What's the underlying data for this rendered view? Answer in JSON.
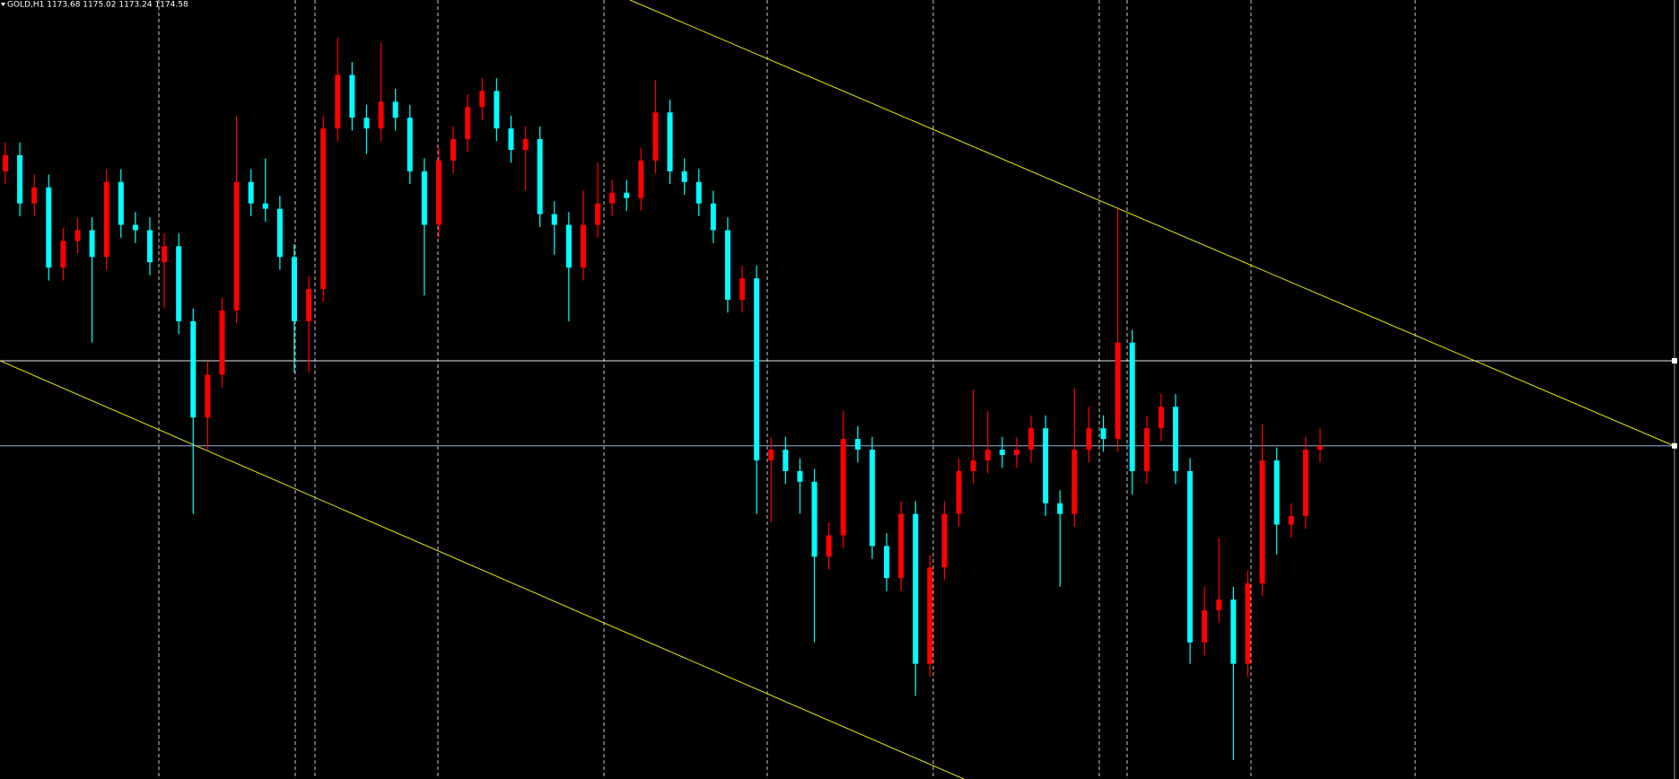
{
  "chart_data": {
    "type": "candlestick",
    "title": "GOLD,H1  1173.68 1175.02 1173.24 1174.58",
    "ylim": [
      1159.02,
      1195.4
    ],
    "up_color": "#ff0000",
    "down_color": "#00ffff",
    "hlines": [
      {
        "value": 1178.55,
        "color": "#e8e8e8"
      },
      {
        "value": 1174.58,
        "color": "#8fb8d8"
      }
    ],
    "open": [
      1187.4,
      1188.15,
      1185.9,
      1186.65,
      1182.9,
      1184.15,
      1184.65,
      1183.4,
      1186.9,
      1184.9,
      1184.65,
      1183.15,
      1183.9,
      1180.4,
      1175.9,
      1177.9,
      1180.9,
      1186.9,
      1185.9,
      1185.65,
      1183.4,
      1180.4,
      1181.9,
      1189.4,
      1191.9,
      1189.9,
      1189.4,
      1190.65,
      1189.9,
      1187.4,
      1184.9,
      1187.9,
      1188.9,
      1190.4,
      1191.15,
      1189.4,
      1188.4,
      1188.9,
      1185.4,
      1184.9,
      1182.9,
      1184.9,
      1185.9,
      1186.4,
      1186.15,
      1187.9,
      1190.15,
      1187.4,
      1186.9,
      1185.9,
      1184.65,
      1181.4,
      1182.4,
      1173.9,
      1174.4,
      1173.4,
      1172.9,
      1169.4,
      1170.4,
      1174.9,
      1174.4,
      1169.9,
      1168.4,
      1171.4,
      1164.4,
      1168.9,
      1171.4,
      1173.4,
      1173.9,
      1174.4,
      1174.15,
      1174.4,
      1175.4,
      1171.9,
      1171.4,
      1174.4,
      1175.4,
      1174.9,
      1179.4,
      1173.4,
      1175.4,
      1176.4,
      1173.4,
      1165.4,
      1166.9,
      1167.4,
      1164.4,
      1168.15,
      1173.9,
      1170.9,
      1171.3,
      1174.4
    ],
    "high": [
      1188.75,
      1188.75,
      1187.25,
      1187.25,
      1184.75,
      1185.25,
      1185.25,
      1187.5,
      1187.5,
      1185.5,
      1185.25,
      1184.5,
      1184.5,
      1181.0,
      1178.5,
      1181.5,
      1190.0,
      1187.5,
      1188.0,
      1186.25,
      1184.0,
      1182.5,
      1190.0,
      1193.65,
      1192.5,
      1190.5,
      1193.4,
      1191.25,
      1190.5,
      1188.0,
      1188.5,
      1189.5,
      1191.0,
      1191.75,
      1191.75,
      1190.0,
      1189.5,
      1189.5,
      1186.0,
      1185.5,
      1186.5,
      1187.8,
      1187.0,
      1187.0,
      1188.5,
      1191.65,
      1190.75,
      1188.0,
      1187.5,
      1186.5,
      1185.25,
      1183.0,
      1183.0,
      1175.0,
      1175.0,
      1174.0,
      1173.5,
      1171.0,
      1176.2,
      1175.5,
      1175.0,
      1170.5,
      1172.0,
      1172.0,
      1169.5,
      1172.0,
      1174.0,
      1177.2,
      1176.2,
      1175.0,
      1175.0,
      1176.0,
      1176.0,
      1172.5,
      1177.3,
      1176.4,
      1176.0,
      1185.65,
      1180.0,
      1176.0,
      1177.0,
      1177.0,
      1174.0,
      1168.0,
      1170.3,
      1168.0,
      1168.75,
      1175.6,
      1174.5,
      1171.9,
      1175.0,
      1175.4
    ],
    "low": [
      1186.8,
      1185.3,
      1185.3,
      1182.3,
      1182.3,
      1183.55,
      1179.4,
      1182.8,
      1184.3,
      1184.05,
      1182.55,
      1181.0,
      1179.8,
      1171.4,
      1174.4,
      1177.3,
      1180.3,
      1185.3,
      1185.05,
      1182.8,
      1178.0,
      1178.0,
      1181.3,
      1188.8,
      1189.3,
      1188.2,
      1188.8,
      1189.3,
      1186.8,
      1181.6,
      1184.3,
      1187.3,
      1188.3,
      1189.8,
      1188.8,
      1187.8,
      1186.5,
      1184.8,
      1183.5,
      1180.4,
      1182.3,
      1184.3,
      1185.3,
      1185.55,
      1185.55,
      1187.3,
      1186.8,
      1186.3,
      1185.3,
      1184.05,
      1180.8,
      1180.8,
      1171.4,
      1171.0,
      1172.8,
      1171.4,
      1165.4,
      1168.8,
      1169.8,
      1173.8,
      1169.3,
      1167.8,
      1167.8,
      1162.9,
      1163.8,
      1168.3,
      1170.8,
      1172.8,
      1173.3,
      1173.55,
      1173.55,
      1173.8,
      1171.3,
      1168.0,
      1170.8,
      1173.8,
      1174.3,
      1174.3,
      1172.3,
      1172.8,
      1174.8,
      1172.8,
      1164.4,
      1164.8,
      1166.3,
      1159.9,
      1163.8,
      1167.55,
      1169.5,
      1170.3,
      1170.7,
      1173.8
    ],
    "close": [
      1188.15,
      1185.9,
      1186.65,
      1182.9,
      1184.15,
      1184.65,
      1183.4,
      1186.9,
      1184.9,
      1184.65,
      1183.15,
      1183.9,
      1180.4,
      1175.9,
      1177.9,
      1180.9,
      1186.9,
      1185.9,
      1185.65,
      1183.4,
      1180.4,
      1181.9,
      1189.4,
      1191.9,
      1189.9,
      1189.4,
      1190.65,
      1189.9,
      1187.4,
      1184.9,
      1187.9,
      1188.9,
      1190.4,
      1191.15,
      1189.4,
      1188.4,
      1188.9,
      1185.4,
      1184.9,
      1182.9,
      1184.9,
      1185.9,
      1186.4,
      1186.15,
      1187.9,
      1190.15,
      1187.4,
      1186.9,
      1185.9,
      1184.65,
      1181.4,
      1182.4,
      1173.9,
      1174.4,
      1173.4,
      1172.9,
      1169.4,
      1170.4,
      1174.9,
      1174.4,
      1169.9,
      1168.4,
      1171.4,
      1164.4,
      1168.9,
      1171.4,
      1173.4,
      1173.9,
      1174.4,
      1174.15,
      1174.4,
      1175.4,
      1171.9,
      1171.4,
      1174.4,
      1175.4,
      1174.9,
      1179.4,
      1173.4,
      1175.4,
      1176.4,
      1173.4,
      1165.4,
      1166.9,
      1167.4,
      1164.4,
      1168.15,
      1173.9,
      1170.9,
      1171.3,
      1174.4,
      1174.58
    ]
  }
}
